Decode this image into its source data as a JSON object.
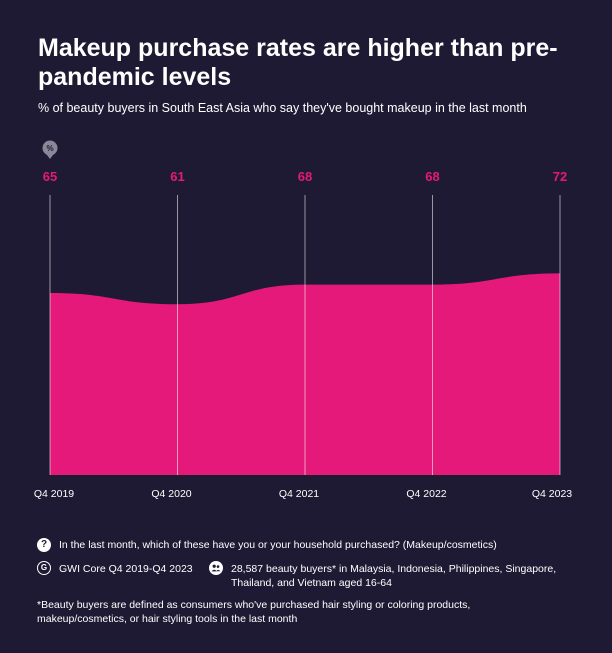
{
  "header": {
    "title": "Makeup purchase rates are higher than pre-pandemic levels",
    "subtitle": "% of beauty buyers in South East Asia who say they've bought makeup in the last month"
  },
  "chart_data": {
    "type": "area",
    "unit_icon_label": "%",
    "categories": [
      "Q4 2019",
      "Q4 2020",
      "Q4 2021",
      "Q4 2022",
      "Q4 2023"
    ],
    "values": [
      65,
      61,
      68,
      68,
      72
    ],
    "ylim": [
      0,
      100
    ],
    "grid": true,
    "color": "#e5197a",
    "label_color": "#e5197a"
  },
  "footer": {
    "question": "In the last month, which of these have you or your household purchased? (Makeup/cosmetics)",
    "source": "GWI Core Q4 2019-Q4 2023",
    "sample": "28,587 beauty buyers* in Malaysia, Indonesia, Philippines, Singapore, Thailand, and Vietnam aged 16-64",
    "note": "*Beauty buyers are defined as consumers who've purchased hair styling or coloring products, makeup/cosmetics, or hair styling tools in the last month",
    "question_icon": "question-icon",
    "source_icon": "gwi-logo-icon",
    "sample_icon": "people-icon"
  }
}
